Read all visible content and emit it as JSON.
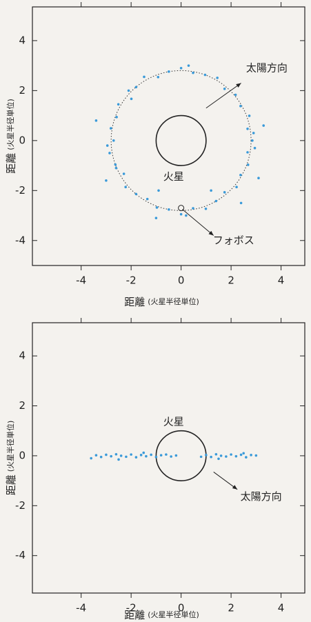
{
  "chart_data": [
    {
      "type": "scatter",
      "x": [
        2.85,
        2.66,
        2.73,
        2.38,
        2.18,
        1.74,
        1.45,
        0.96,
        0.48,
        0,
        -0.49,
        -0.92,
        -1.48,
        -1.8,
        -1.99,
        -2.51,
        -2.58,
        -2.81,
        -2.7,
        -2.86,
        -2.63,
        -2.29,
        -2.22,
        -1.8,
        -1.35,
        -0.97,
        -0.49,
        0,
        0.48,
        0.99,
        1.4,
        1.74,
        2.22,
        2.38,
        2.68,
        2.66,
        -3.4,
        -3.0,
        2.4,
        -0.9,
        1.2,
        3.3,
        -2.1,
        0.3,
        -1.0,
        3.1,
        2.9,
        2.95,
        -2.95,
        -2.6,
        0.2
      ],
      "series": [
        {
          "color": "#3a9ad9",
          "values": [
            0,
            0.47,
            0.99,
            1.38,
            1.83,
            2.07,
            2.51,
            2.63,
            2.71,
            2.9,
            2.76,
            2.54,
            2.55,
            2.14,
            1.67,
            1.45,
            0.94,
            0.49,
            0,
            -0.5,
            -0.96,
            -1.33,
            -1.86,
            -2.14,
            -2.34,
            -2.68,
            -2.76,
            -2.95,
            -2.71,
            -2.73,
            -2.42,
            -2.07,
            -1.86,
            -1.38,
            -0.97,
            -0.47,
            0.8,
            -1.6,
            -2.5,
            -2.0,
            -2.0,
            0.6,
            2.0,
            3.0,
            -3.1,
            -1.5,
            0.3,
            -0.3,
            -0.2,
            -1.1,
            -3.0
          ]
        }
      ],
      "mars_radius": 1,
      "orbit_radius": 2.8,
      "xlim": [
        -5.95,
        4.95
      ],
      "ylim": [
        -5.0,
        5.35
      ],
      "xticks": [
        -4,
        -2,
        0,
        2,
        4
      ],
      "yticks": [
        -4,
        -2,
        0,
        2,
        4
      ],
      "xlabel": "距離",
      "xlabel_unit": "(火星半径単位)",
      "ylabel": "距離",
      "ylabel_unit": "(火星半径単位)",
      "annotations": [
        "太陽方向",
        "火星",
        "フォボス"
      ]
    },
    {
      "type": "scatter",
      "x": [
        -3.6,
        -3.4,
        -3.2,
        -3.0,
        -2.8,
        -2.6,
        -2.4,
        -2.2,
        -2.0,
        -1.8,
        -1.6,
        -1.4,
        -1.2,
        -1.0,
        -0.8,
        -0.6,
        -0.4,
        -0.2,
        0.8,
        1.0,
        1.2,
        1.4,
        1.6,
        1.8,
        2.0,
        2.2,
        2.4,
        2.6,
        2.8,
        3.0,
        -2.5,
        -1.5,
        1.5,
        2.5
      ],
      "series": [
        {
          "color": "#3a9ad9",
          "values": [
            -0.1,
            0.02,
            -0.05,
            0.04,
            -0.02,
            0.06,
            0.0,
            -0.04,
            0.05,
            -0.06,
            0.03,
            -0.02,
            0.04,
            -0.05,
            0.02,
            0.05,
            -0.03,
            0.01,
            -0.04,
            0.03,
            -0.05,
            0.06,
            0.0,
            -0.03,
            0.05,
            -0.02,
            0.04,
            -0.06,
            0.03,
            0.01,
            -0.15,
            0.12,
            -0.12,
            0.1
          ]
        }
      ],
      "mars_radius": 1,
      "xlim": [
        -5.95,
        4.95
      ],
      "ylim": [
        -5.5,
        5.33
      ],
      "xticks": [
        -4,
        -2,
        0,
        2,
        4
      ],
      "yticks": [
        -4,
        -2,
        0,
        2,
        4
      ],
      "xlabel": "距離",
      "xlabel_unit": "(火星半径単位)",
      "ylabel": "距離",
      "ylabel_unit": "(火星半径単位)",
      "annotations": [
        "火星",
        "太陽方向"
      ]
    }
  ]
}
